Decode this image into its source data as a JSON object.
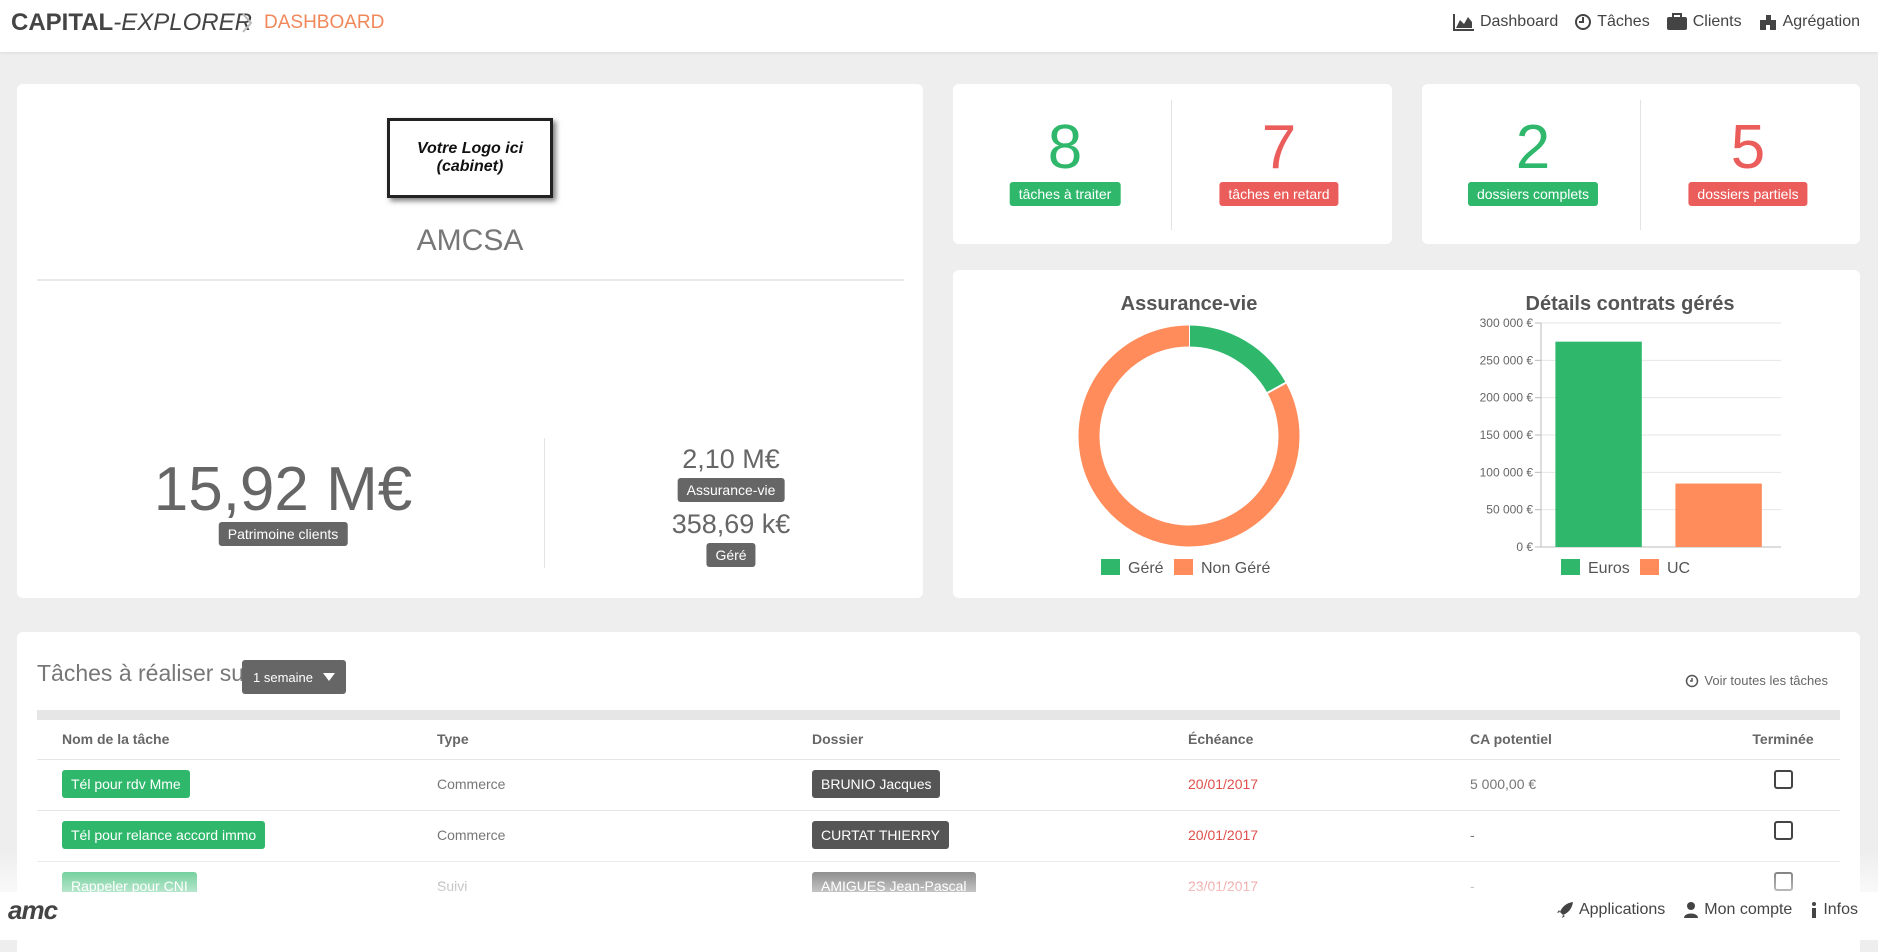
{
  "header": {
    "brand": "CAPITAL",
    "brand_suffix": "-EXPLORER",
    "breadcrumb": "DASHBOARD",
    "nav": [
      "Dashboard",
      "Tâches",
      "Clients",
      "Agrégation"
    ]
  },
  "profile": {
    "logo_text": [
      "Votre Logo ici",
      "(cabinet)"
    ],
    "name": "AMCSA",
    "total": {
      "value": "15,92 M€",
      "label": "Patrimoine clients"
    },
    "details": [
      {
        "value": "2,10 M€",
        "label": "Assurance-vie"
      },
      {
        "value": "358,69 k€",
        "label": "Géré"
      }
    ]
  },
  "kpis": [
    {
      "value": 8,
      "label": "tâches à traiter",
      "color": "#2fb86c"
    },
    {
      "value": 7,
      "label": "tâches en retard",
      "color": "#ea5d5b"
    },
    {
      "value": 2,
      "label": "dossiers complets",
      "color": "#2fb86c"
    },
    {
      "value": 5,
      "label": "dossiers partiels",
      "color": "#ea5d5b"
    }
  ],
  "chart_data": [
    {
      "type": "donut",
      "title": "Assurance-vie",
      "categories": [
        "Géré",
        "Non Géré"
      ],
      "values": [
        17,
        83
      ],
      "colors": [
        "#2fb86c",
        "#ff8c5a"
      ]
    },
    {
      "type": "bar",
      "title": "Détails contrats gérés",
      "categories": [
        "Euros",
        "UC"
      ],
      "values": [
        275000,
        85000
      ],
      "colors": [
        "#2fb86c",
        "#ff8c5a"
      ],
      "ylim": [
        0,
        300000
      ],
      "yticks": [
        {
          "value": 0,
          "label": "0 €"
        },
        {
          "value": 50000,
          "label": "50 000 €"
        },
        {
          "value": 100000,
          "label": "100 000 €"
        },
        {
          "value": 150000,
          "label": "150 000 €"
        },
        {
          "value": 200000,
          "label": "200 000 €"
        },
        {
          "value": 250000,
          "label": "250 000 €"
        },
        {
          "value": 300000,
          "label": "300 000 €"
        }
      ],
      "grid": true
    }
  ],
  "tasks": {
    "title": "Tâches à réaliser sur",
    "period": "1 semaine",
    "link": "Voir toutes les tâches",
    "columns": [
      "Nom de la tâche",
      "Type",
      "Dossier",
      "Échéance",
      "CA potentiel",
      "Terminée"
    ],
    "rows": [
      [
        "Tél pour rdv Mme",
        "Commerce",
        "BRUNIO Jacques",
        "20/01/2017",
        "5 000,00 €"
      ],
      [
        "Tél pour relance accord immo",
        "Commerce",
        "CURTAT THIERRY",
        "20/01/2017",
        "-"
      ],
      [
        "Rappeler pour CNI",
        "Suivi",
        "AMIGUES Jean-Pascal",
        "23/01/2017",
        "-"
      ]
    ]
  },
  "footer": {
    "logo": "amc",
    "links": [
      "Applications",
      "Mon compte",
      "Infos"
    ]
  }
}
